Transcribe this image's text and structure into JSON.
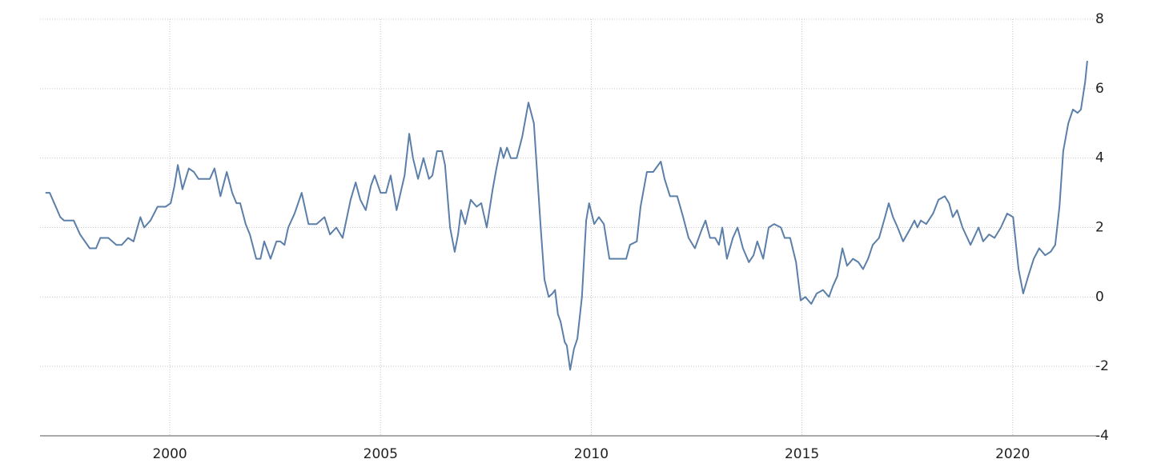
{
  "chart_data": {
    "type": "line",
    "x": [
      1997.05,
      1997.15,
      1997.4,
      1997.49,
      1997.72,
      1997.87,
      1998.1,
      1998.25,
      1998.35,
      1998.54,
      1998.73,
      1998.86,
      1999.01,
      1999.14,
      1999.3,
      1999.39,
      1999.54,
      1999.71,
      1999.9,
      2000.02,
      2000.11,
      2000.19,
      2000.3,
      2000.45,
      2000.57,
      2000.68,
      2000.82,
      2000.95,
      2001.06,
      2001.2,
      2001.35,
      2001.48,
      2001.58,
      2001.67,
      2001.8,
      2001.9,
      2002.05,
      2002.15,
      2002.24,
      2002.39,
      2002.53,
      2002.62,
      2002.72,
      2002.81,
      2002.96,
      2003.13,
      2003.29,
      2003.48,
      2003.67,
      2003.8,
      2003.95,
      2004.1,
      2004.29,
      2004.41,
      2004.52,
      2004.65,
      2004.77,
      2004.86,
      2005.0,
      2005.13,
      2005.24,
      2005.38,
      2005.57,
      2005.68,
      2005.77,
      2005.89,
      2006.02,
      2006.15,
      2006.23,
      2006.34,
      2006.46,
      2006.53,
      2006.65,
      2006.76,
      2006.84,
      2006.91,
      2007.01,
      2007.14,
      2007.28,
      2007.39,
      2007.52,
      2007.66,
      2007.75,
      2007.85,
      2007.92,
      2008.0,
      2008.09,
      2008.23,
      2008.36,
      2008.51,
      2008.64,
      2008.8,
      2008.89,
      2008.99,
      2009.08,
      2009.14,
      2009.21,
      2009.27,
      2009.37,
      2009.42,
      2009.5,
      2009.59,
      2009.67,
      2009.78,
      2009.88,
      2009.95,
      2010.07,
      2010.18,
      2010.3,
      2010.43,
      2010.56,
      2010.7,
      2010.83,
      2010.92,
      2011.08,
      2011.17,
      2011.32,
      2011.47,
      2011.65,
      2011.74,
      2011.87,
      2012.04,
      2012.18,
      2012.31,
      2012.46,
      2012.61,
      2012.71,
      2012.82,
      2012.94,
      2013.03,
      2013.11,
      2013.22,
      2013.36,
      2013.47,
      2013.6,
      2013.74,
      2013.85,
      2013.94,
      2014.08,
      2014.21,
      2014.34,
      2014.5,
      2014.59,
      2014.72,
      2014.86,
      2014.97,
      2015.08,
      2015.22,
      2015.35,
      2015.5,
      2015.64,
      2015.73,
      2015.84,
      2015.96,
      2016.07,
      2016.21,
      2016.34,
      2016.45,
      2016.57,
      2016.68,
      2016.83,
      2016.97,
      2017.06,
      2017.16,
      2017.27,
      2017.4,
      2017.54,
      2017.67,
      2017.74,
      2017.82,
      2017.95,
      2018.11,
      2018.24,
      2018.39,
      2018.49,
      2018.58,
      2018.68,
      2018.81,
      2019.0,
      2019.19,
      2019.3,
      2019.44,
      2019.57,
      2019.72,
      2019.87,
      2020.01,
      2020.14,
      2020.25,
      2020.37,
      2020.5,
      2020.63,
      2020.77,
      2020.9,
      2021.01,
      2021.11,
      2021.2,
      2021.32,
      2021.43,
      2021.54,
      2021.62,
      2021.72,
      2021.77
    ],
    "series": [
      {
        "color": "#5b7fa8",
        "values": [
          3.0,
          3.0,
          2.3,
          2.2,
          2.2,
          1.8,
          1.4,
          1.4,
          1.7,
          1.7,
          1.5,
          1.5,
          1.7,
          1.6,
          2.3,
          2.0,
          2.2,
          2.6,
          2.6,
          2.7,
          3.2,
          3.8,
          3.1,
          3.7,
          3.6,
          3.4,
          3.4,
          3.4,
          3.7,
          2.9,
          3.6,
          3.0,
          2.7,
          2.7,
          2.1,
          1.8,
          1.1,
          1.1,
          1.6,
          1.1,
          1.6,
          1.6,
          1.5,
          2.0,
          2.4,
          3.0,
          2.1,
          2.1,
          2.3,
          1.8,
          2.0,
          1.7,
          2.8,
          3.3,
          2.8,
          2.5,
          3.2,
          3.5,
          3.0,
          3.0,
          3.5,
          2.5,
          3.5,
          4.7,
          4.0,
          3.4,
          4.0,
          3.4,
          3.5,
          4.2,
          4.2,
          3.8,
          2.0,
          1.3,
          1.8,
          2.5,
          2.1,
          2.8,
          2.6,
          2.7,
          2.0,
          3.1,
          3.7,
          4.3,
          4.0,
          4.3,
          4.0,
          4.0,
          4.6,
          5.6,
          5.0,
          2.0,
          0.5,
          0.0,
          0.1,
          0.2,
          -0.5,
          -0.7,
          -1.3,
          -1.4,
          -2.1,
          -1.5,
          -1.2,
          0.0,
          2.2,
          2.7,
          2.1,
          2.3,
          2.1,
          1.1,
          1.1,
          1.1,
          1.1,
          1.5,
          1.6,
          2.6,
          3.6,
          3.6,
          3.9,
          3.4,
          2.9,
          2.9,
          2.3,
          1.7,
          1.4,
          1.9,
          2.2,
          1.7,
          1.7,
          1.5,
          2.0,
          1.1,
          1.7,
          2.0,
          1.4,
          1.0,
          1.2,
          1.6,
          1.1,
          2.0,
          2.1,
          2.0,
          1.7,
          1.7,
          1.0,
          -0.1,
          0.0,
          -0.2,
          0.1,
          0.2,
          0.0,
          0.3,
          0.6,
          1.4,
          0.9,
          1.1,
          1.0,
          0.8,
          1.1,
          1.5,
          1.7,
          2.3,
          2.7,
          2.3,
          2.0,
          1.6,
          1.9,
          2.2,
          2.0,
          2.2,
          2.1,
          2.4,
          2.8,
          2.9,
          2.7,
          2.3,
          2.5,
          2.0,
          1.5,
          2.0,
          1.6,
          1.8,
          1.7,
          2.0,
          2.4,
          2.3,
          0.8,
          0.1,
          0.6,
          1.1,
          1.4,
          1.2,
          1.3,
          1.5,
          2.6,
          4.2,
          5.0,
          5.4,
          5.3,
          5.4,
          6.2,
          6.8
        ]
      }
    ],
    "xlim": [
      1996.92,
      2022
    ],
    "xticks": [
      2000,
      2005,
      2010,
      2015,
      2020
    ],
    "ylim": [
      -4,
      8
    ],
    "yticks": [
      -4,
      -2,
      0,
      2,
      4,
      6,
      8
    ],
    "grid": true
  }
}
